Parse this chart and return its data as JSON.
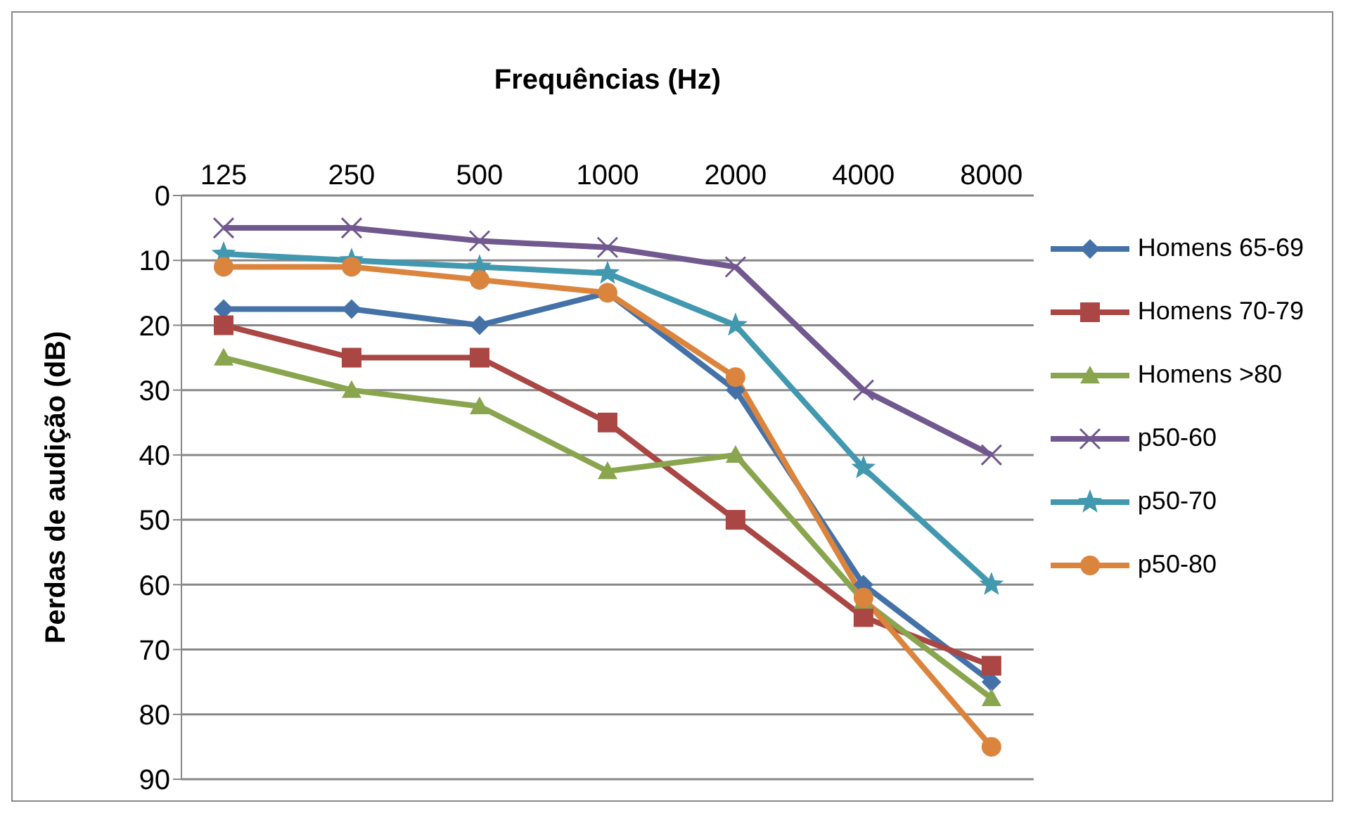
{
  "chart_data": {
    "type": "line",
    "xlabel": "Frequências (Hz)",
    "ylabel": "Perdas de audição (dB)",
    "categories": [
      "125",
      "250",
      "500",
      "1000",
      "2000",
      "4000",
      "8000"
    ],
    "ylim": [
      90,
      0
    ],
    "yticks": [
      0,
      10,
      20,
      30,
      40,
      50,
      60,
      70,
      80,
      90
    ],
    "grid": "y",
    "legend": "right",
    "line_style": "solid",
    "series": [
      {
        "name": "Homens 65-69",
        "color": "#4472a8",
        "marker": "diamond",
        "values": [
          17.5,
          17.5,
          20,
          15,
          30,
          60,
          75
        ]
      },
      {
        "name": "Homens 70-79",
        "color": "#aa4643",
        "marker": "square",
        "values": [
          20,
          25,
          25,
          35,
          50,
          65,
          72.5
        ]
      },
      {
        "name": "Homens >80",
        "color": "#89a54e",
        "marker": "triangle",
        "values": [
          25,
          30,
          32.5,
          42.5,
          40,
          62.5,
          77.5
        ]
      },
      {
        "name": "p50-60",
        "color": "#71588f",
        "marker": "cross",
        "values": [
          5,
          5,
          7,
          8,
          11,
          30,
          40
        ]
      },
      {
        "name": "p50-70",
        "color": "#4198af",
        "marker": "star",
        "values": [
          9,
          10,
          11,
          12,
          20,
          42,
          60
        ]
      },
      {
        "name": "p50-80",
        "color": "#db843d",
        "marker": "circle",
        "values": [
          11,
          11,
          13,
          15,
          28,
          62,
          85
        ]
      }
    ]
  }
}
